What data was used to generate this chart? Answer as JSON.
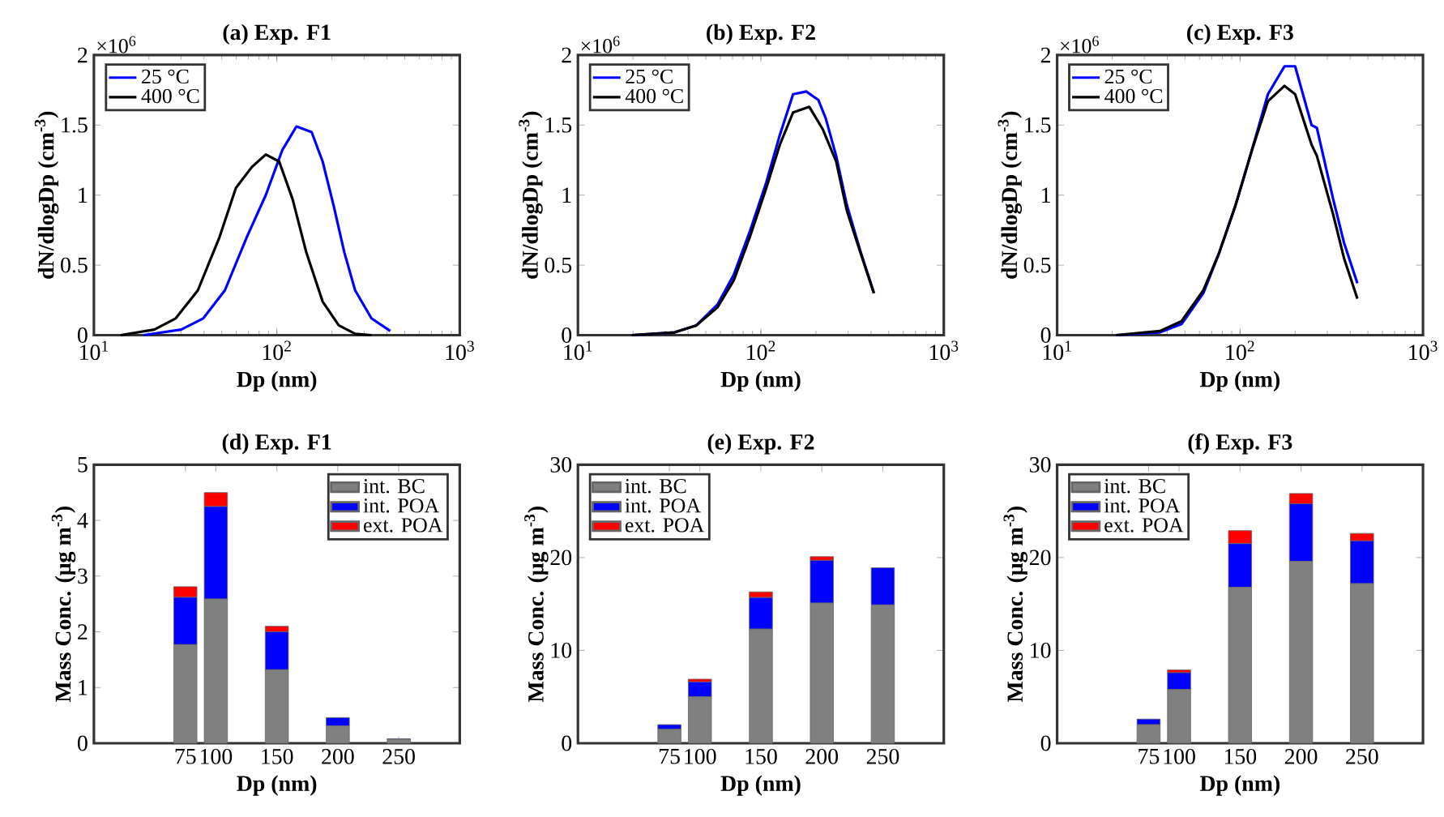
{
  "chart_data": [
    {
      "type": "line",
      "title": "(a) Exp. F1",
      "xlabel": "Dp (nm)",
      "ylabel": "dN/dlogDp (cm$^{-3}$)",
      "log": "x",
      "xlim": [
        10,
        1000
      ],
      "ylim": [
        0,
        2
      ],
      "xticks": [
        {
          "value": 10,
          "label": "10$^{1}$"
        },
        {
          "value": 100,
          "label": "10$^{2}$"
        },
        {
          "value": 1000,
          "label": "10$^{3}$"
        }
      ],
      "yticks": [
        0,
        0.5,
        1,
        1.5,
        2
      ],
      "legend": "top left",
      "annotations": [
        "×10$^{6}$"
      ],
      "series": [
        {
          "name": "25 °C",
          "color": "#0000ff",
          "x": [
            18.7,
            30,
            39.6,
            52,
            68.5,
            87,
            107,
            128,
            155,
            178,
            204,
            234,
            268,
            329,
            417
          ],
          "values": [
            0,
            0.04,
            0.12,
            0.32,
            0.7,
            1.0,
            1.32,
            1.49,
            1.45,
            1.24,
            0.93,
            0.59,
            0.32,
            0.12,
            0.03
          ]
        },
        {
          "name": "400 °C",
          "color": "#000000",
          "x": [
            14,
            21.4,
            28,
            37,
            48.6,
            59.7,
            73,
            87,
            103,
            122,
            145,
            178,
            218,
            268,
            329
          ],
          "values": [
            0,
            0.04,
            0.12,
            0.32,
            0.7,
            1.05,
            1.2,
            1.29,
            1.24,
            0.97,
            0.59,
            0.24,
            0.07,
            0.01,
            0
          ]
        }
      ]
    },
    {
      "type": "line",
      "title": "(b) Exp. F2",
      "xlabel": "Dp (nm)",
      "ylabel": "dN/dlogDp (cm$^{-3}$)",
      "log": "x",
      "xlim": [
        10,
        1000
      ],
      "ylim": [
        0,
        2
      ],
      "xticks": [
        {
          "value": 10,
          "label": "10$^{1}$"
        },
        {
          "value": 100,
          "label": "10$^{2}$"
        },
        {
          "value": 1000,
          "label": "10$^{3}$"
        }
      ],
      "yticks": [
        0,
        0.5,
        1,
        1.5,
        2
      ],
      "legend": "top left",
      "annotations": [
        "×10$^{6}$"
      ],
      "series": [
        {
          "name": "25 °C",
          "color": "#0000ff",
          "x": [
            19.7,
            33.8,
            44.4,
            58,
            71,
            87,
            107,
            127,
            150,
            177,
            206,
            226,
            258,
            295,
            350,
            415
          ],
          "values": [
            0,
            0.02,
            0.07,
            0.22,
            0.43,
            0.74,
            1.09,
            1.43,
            1.72,
            1.74,
            1.68,
            1.55,
            1.28,
            0.93,
            0.6,
            0.3
          ]
        },
        {
          "name": "400 °C",
          "color": "#000000",
          "x": [
            19.7,
            33.8,
            44.4,
            58,
            71,
            87,
            107,
            127,
            150,
            184,
            218,
            258,
            295,
            350,
            415
          ],
          "values": [
            0,
            0.02,
            0.07,
            0.2,
            0.39,
            0.7,
            1.05,
            1.36,
            1.59,
            1.63,
            1.47,
            1.24,
            0.89,
            0.59,
            0.3
          ]
        }
      ]
    },
    {
      "type": "line",
      "title": "(c) Exp. F3",
      "xlabel": "Dp (nm)",
      "ylabel": "dN/dlogDp (cm$^{-3}$)",
      "log": "x",
      "xlim": [
        10,
        1000
      ],
      "ylim": [
        0,
        2
      ],
      "xticks": [
        {
          "value": 10,
          "label": "10$^{1}$"
        },
        {
          "value": 100,
          "label": "10$^{2}$"
        },
        {
          "value": 1000,
          "label": "10$^{3}$"
        }
      ],
      "yticks": [
        0,
        0.5,
        1,
        1.5,
        2
      ],
      "legend": "top left",
      "annotations": [
        "×10$^{6}$"
      ],
      "series": [
        {
          "name": "25 °C",
          "color": "#0000ff",
          "x": [
            21,
            36.5,
            47.9,
            63,
            77,
            94.6,
            116,
            142,
            175,
            200,
            246,
            263,
            323,
            370,
            438
          ],
          "values": [
            0,
            0.02,
            0.08,
            0.3,
            0.59,
            0.93,
            1.32,
            1.72,
            1.92,
            1.92,
            1.5,
            1.48,
            0.97,
            0.66,
            0.37
          ]
        },
        {
          "name": "400 °C",
          "color": "#000000",
          "x": [
            21,
            36.5,
            47.9,
            63,
            77,
            94.6,
            116,
            142,
            175,
            200,
            246,
            263,
            323,
            370,
            438
          ],
          "values": [
            0,
            0.03,
            0.1,
            0.32,
            0.59,
            0.93,
            1.32,
            1.67,
            1.78,
            1.72,
            1.36,
            1.28,
            0.86,
            0.55,
            0.26
          ]
        }
      ]
    },
    {
      "type": "bar",
      "stacked": true,
      "title": "(d) Exp. F1",
      "xlabel": "Dp (nm)",
      "ylabel": "Mass Conc. (μg m$^{-3}$)",
      "x": [
        75,
        100,
        150,
        200,
        250
      ],
      "xlim": [
        0,
        300
      ],
      "xticks": [
        75,
        100,
        150,
        200,
        250
      ],
      "ylim": [
        0,
        5
      ],
      "yticks": [
        0,
        1,
        2,
        3,
        4,
        5
      ],
      "legend": "top right",
      "series": [
        {
          "name": "int. BC",
          "color": "#808080",
          "values": [
            1.77,
            2.59,
            1.32,
            0.31,
            0.07
          ]
        },
        {
          "name": "int. POA",
          "color": "#0000ff",
          "values": [
            0.85,
            1.66,
            0.68,
            0.15,
            0.01
          ]
        },
        {
          "name": "ext. POA",
          "color": "#ff0000",
          "values": [
            0.19,
            0.25,
            0.1,
            0,
            0
          ]
        }
      ]
    },
    {
      "type": "bar",
      "stacked": true,
      "title": "(e) Exp. F2",
      "xlabel": "Dp (nm)",
      "ylabel": "Mass Conc. (μg m$^{-3}$)",
      "x": [
        75,
        100,
        150,
        200,
        250
      ],
      "xlim": [
        0,
        300
      ],
      "xticks": [
        75,
        100,
        150,
        200,
        250
      ],
      "ylim": [
        0,
        30
      ],
      "yticks": [
        0,
        10,
        20,
        30
      ],
      "legend": "top left",
      "series": [
        {
          "name": "int. BC",
          "color": "#808080",
          "values": [
            1.5,
            5.0,
            12.3,
            15.1,
            14.9
          ]
        },
        {
          "name": "int. POA",
          "color": "#0000ff",
          "values": [
            0.5,
            1.6,
            3.4,
            4.6,
            4.0
          ]
        },
        {
          "name": "ext. POA",
          "color": "#ff0000",
          "values": [
            0,
            0.3,
            0.6,
            0.4,
            0
          ]
        }
      ]
    },
    {
      "type": "bar",
      "stacked": true,
      "title": "(f) Exp. F3",
      "xlabel": "Dp (nm)",
      "ylabel": "Mass Conc. (μg m$^{-3}$)",
      "x": [
        75,
        100,
        150,
        200,
        250
      ],
      "xlim": [
        0,
        300
      ],
      "xticks": [
        75,
        100,
        150,
        200,
        250
      ],
      "ylim": [
        0,
        30
      ],
      "yticks": [
        0,
        10,
        20,
        30
      ],
      "legend": "top left",
      "series": [
        {
          "name": "int. BC",
          "color": "#808080",
          "values": [
            2.0,
            5.8,
            16.8,
            19.6,
            17.2
          ]
        },
        {
          "name": "int. POA",
          "color": "#0000ff",
          "values": [
            0.6,
            1.8,
            4.7,
            6.2,
            4.6
          ]
        },
        {
          "name": "ext. POA",
          "color": "#ff0000",
          "values": [
            0,
            0.3,
            1.4,
            1.1,
            0.8
          ]
        }
      ]
    }
  ]
}
